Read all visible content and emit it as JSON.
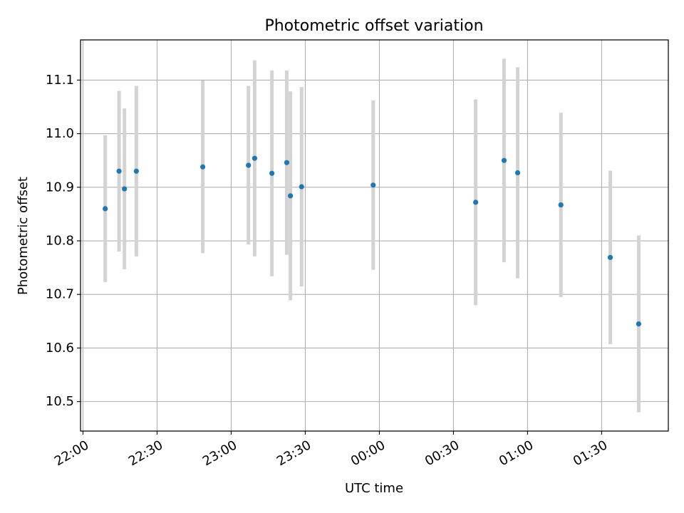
{
  "chart_data": {
    "type": "scatter",
    "title": "Photometric offset variation",
    "xlabel": "UTC time",
    "ylabel": "Photometric offset",
    "x_unit": "minutes after 22:00 UTC",
    "xlim": [
      -1,
      237
    ],
    "ylim": [
      10.445,
      11.175
    ],
    "x_ticks": [
      {
        "value": 0,
        "label": "22:00"
      },
      {
        "value": 30,
        "label": "22:30"
      },
      {
        "value": 60,
        "label": "23:00"
      },
      {
        "value": 90,
        "label": "23:30"
      },
      {
        "value": 120,
        "label": "00:00"
      },
      {
        "value": 150,
        "label": "00:30"
      },
      {
        "value": 180,
        "label": "01:00"
      },
      {
        "value": 210,
        "label": "01:30"
      }
    ],
    "y_ticks": [
      10.5,
      10.6,
      10.7,
      10.8,
      10.9,
      11.0,
      11.1
    ],
    "grid": true,
    "point_color": "#1f77b4",
    "errorbar_color": "#d3d3d3",
    "points": [
      {
        "x": 9.0,
        "y": 10.86,
        "err": 0.137
      },
      {
        "x": 14.6,
        "y": 10.93,
        "err": 0.15
      },
      {
        "x": 16.8,
        "y": 10.897,
        "err": 0.15
      },
      {
        "x": 21.6,
        "y": 10.93,
        "err": 0.159
      },
      {
        "x": 48.5,
        "y": 10.938,
        "err": 0.161
      },
      {
        "x": 67.0,
        "y": 10.941,
        "err": 0.148
      },
      {
        "x": 69.5,
        "y": 10.954,
        "err": 0.183
      },
      {
        "x": 76.5,
        "y": 10.926,
        "err": 0.192
      },
      {
        "x": 82.5,
        "y": 10.946,
        "err": 0.172
      },
      {
        "x": 84.0,
        "y": 10.884,
        "err": 0.195
      },
      {
        "x": 88.5,
        "y": 10.901,
        "err": 0.186
      },
      {
        "x": 117.5,
        "y": 10.904,
        "err": 0.158
      },
      {
        "x": 159.0,
        "y": 10.872,
        "err": 0.192
      },
      {
        "x": 170.5,
        "y": 10.95,
        "err": 0.19
      },
      {
        "x": 176.0,
        "y": 10.927,
        "err": 0.197
      },
      {
        "x": 193.5,
        "y": 10.867,
        "err": 0.172
      },
      {
        "x": 213.5,
        "y": 10.769,
        "err": 0.162
      },
      {
        "x": 225.0,
        "y": 10.645,
        "err": 0.165
      }
    ]
  }
}
